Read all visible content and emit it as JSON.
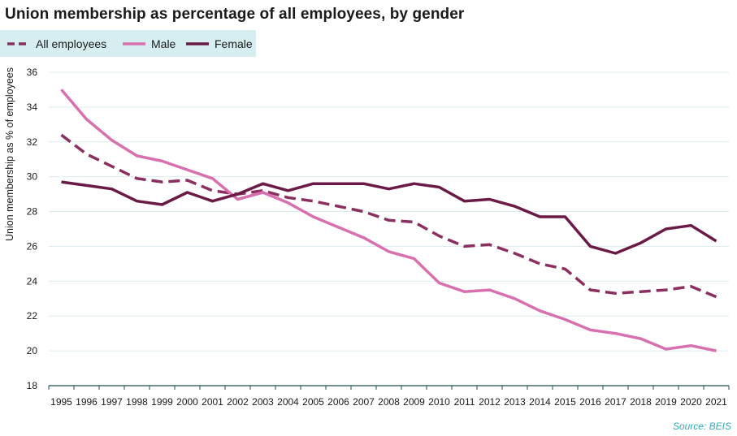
{
  "title": "Union membership as percentage of all employees, by gender",
  "source": "Source: BEIS",
  "legend": [
    {
      "label": "All employees",
      "color": "#8a2f5f",
      "style": "dashed"
    },
    {
      "label": "Male",
      "color": "#d870b0",
      "style": "solid"
    },
    {
      "label": "Female",
      "color": "#6b1a45",
      "style": "solid"
    }
  ],
  "chart_data": {
    "type": "line",
    "title": "Union membership as percentage of all employees, by gender",
    "xlabel": "",
    "ylabel": "Union membership as % of employees",
    "ylim": [
      18,
      36
    ],
    "yticks": [
      18,
      20,
      22,
      24,
      26,
      28,
      30,
      32,
      34,
      36
    ],
    "grid": true,
    "legend_position": "top-left",
    "x": [
      "1995",
      "1996",
      "1997",
      "1998",
      "1999",
      "2000",
      "2001",
      "2002",
      "2003",
      "2004",
      "2005",
      "2006",
      "2007",
      "2008",
      "2009",
      "2010",
      "2011",
      "2012",
      "2013",
      "2014",
      "2015",
      "2016",
      "2017",
      "2018",
      "2019",
      "2020",
      "2021"
    ],
    "series": [
      {
        "name": "All employees",
        "color": "#8a2f5f",
        "style": "dashed",
        "values": [
          32.4,
          31.3,
          30.6,
          29.9,
          29.7,
          29.8,
          29.2,
          29.0,
          29.2,
          28.8,
          28.6,
          28.3,
          28.0,
          27.5,
          27.4,
          26.6,
          26.0,
          26.1,
          25.6,
          25.0,
          24.7,
          23.5,
          23.3,
          23.4,
          23.5,
          23.7,
          23.1
        ]
      },
      {
        "name": "Male",
        "color": "#d870b0",
        "style": "solid",
        "values": [
          35.0,
          33.3,
          32.1,
          31.2,
          30.9,
          30.4,
          29.9,
          28.7,
          29.1,
          28.5,
          27.7,
          27.1,
          26.5,
          25.7,
          25.3,
          23.9,
          23.4,
          23.5,
          23.0,
          22.3,
          21.8,
          21.2,
          21.0,
          20.7,
          20.1,
          20.3,
          20.0
        ]
      },
      {
        "name": "Female",
        "color": "#6b1a45",
        "style": "solid",
        "values": [
          29.7,
          29.5,
          29.3,
          28.6,
          28.4,
          29.1,
          28.6,
          29.0,
          29.6,
          29.2,
          29.6,
          29.6,
          29.6,
          29.3,
          29.6,
          29.4,
          28.6,
          28.7,
          28.3,
          27.7,
          27.7,
          26.0,
          25.6,
          26.2,
          27.0,
          27.2,
          26.3
        ]
      }
    ]
  }
}
